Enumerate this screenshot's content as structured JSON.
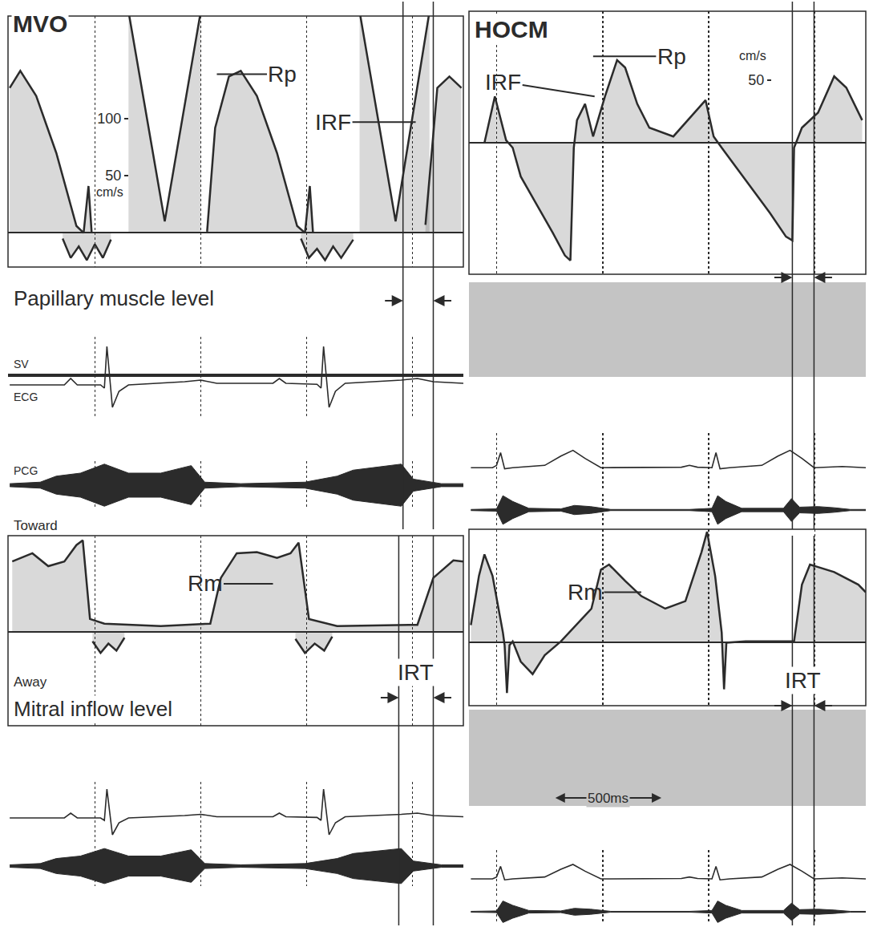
{
  "chart_data": [
    {
      "type": "line",
      "title": "MVO",
      "level": "Papillary muscle level",
      "color": "#2b2b2b",
      "grid": true,
      "tick_labels": "y",
      "xlim": [
        -410,
        1740
      ],
      "xticks": [
        0,
        500,
        1000,
        1500
      ],
      "doppler": {
        "ylim": [
          -30,
          190
        ],
        "yticks": [
          50,
          100
        ],
        "unit": "cm/s",
        "series": [
          {
            "x": [
              -402,
              -352,
              -277,
              -182,
              -87,
              -53,
              -30,
              -15
            ],
            "values": [
              127,
              142,
              120,
              70,
              6,
              0,
              41,
              0
            ]
          },
          {
            "x": [
              159,
              330,
              500
            ],
            "values": [
              194,
              10,
              194
            ]
          },
          {
            "x": [
              530,
              568,
              633,
              689,
              765,
              860,
              955,
              992,
              1015,
              1030
            ],
            "values": [
              1,
              92,
              137,
              142,
              120,
              70,
              6,
              0,
              41,
              0
            ]
          },
          {
            "x": [
              1250,
              1420,
              1580
            ],
            "values": [
              194,
              10,
              194
            ]
          },
          {
            "x": [
              1561,
              1617,
              1674,
              1731
            ],
            "values": [
              7,
              127,
              137,
              127
            ]
          },
          {
            "x": [
              -152,
              -114,
              -76,
              -38,
              0,
              38,
              76
            ],
            "values": [
              -5,
              -22,
              -12,
              -24,
              -10,
              -22,
              -6
            ]
          },
          {
            "x": [
              973,
              1011,
              1049,
              1087,
              1125,
              1163,
              1220
            ],
            "values": [
              -5,
              -22,
              -14,
              -24,
              -12,
              -22,
              -6
            ]
          }
        ]
      },
      "annotations": [
        {
          "text": "Rp",
          "x": 576,
          "y": 139
        },
        {
          "text": "IRF",
          "x": 1515,
          "y": 97
        }
      ],
      "interval": {
        "x": [
          1455,
          1598
        ]
      },
      "sv": {
        "label": "SV",
        "y": 0.3
      },
      "ecg": {
        "label": "ECG",
        "ylim": [
          -1,
          1.5
        ],
        "x": [
          -402,
          -144,
          -114,
          -83,
          27,
          45,
          57,
          83,
          114,
          159,
          424,
          500,
          576,
          841,
          871,
          902,
          1049,
          1068,
          1080,
          1106,
          1136,
          1182,
          1447,
          1523,
          1598,
          1740
        ],
        "values": [
          0,
          0,
          0.2,
          0,
          0,
          -0.1,
          1.2,
          -0.7,
          -0.2,
          0,
          0.1,
          0.15,
          0.05,
          0.05,
          0.2,
          0.05,
          0.02,
          -0.1,
          1.2,
          -0.7,
          -0.2,
          0.05,
          0.15,
          0.2,
          0.1,
          0.05
        ]
      },
      "pcg": {
        "label": "PCG",
        "ylim": [
          -16,
          16
        ],
        "x": [
          -402,
          -258,
          -182,
          -68,
          45,
          159,
          311,
          455,
          519,
          689,
          992,
          1144,
          1220,
          1333,
          1447,
          1504,
          1636,
          1740
        ],
        "upper": [
          1,
          2,
          6,
          8,
          14,
          8,
          8,
          13,
          2,
          1,
          2,
          6,
          10,
          12,
          14,
          4,
          1,
          1
        ],
        "lower": [
          -1,
          -2,
          -6,
          -8,
          -14,
          -8,
          -8,
          -13,
          -2,
          -1,
          -2,
          -6,
          -10,
          -12,
          -14,
          -4,
          -1,
          -1
        ]
      }
    },
    {
      "type": "line",
      "title": "HOCM",
      "color": "#2b2b2b",
      "grid": true,
      "tick_labels": "y",
      "xlim": [
        -130,
        1740
      ],
      "xticks": [
        0,
        500,
        1000,
        1500
      ],
      "doppler": {
        "ylim": [
          -105,
          105
        ],
        "yticks": [
          50
        ],
        "unit": "cm/s",
        "series": [
          {
            "x": [
              -57,
              -8,
              45,
              76,
              114,
              189,
              265,
              322,
              348,
              364,
              379,
              417,
              455,
              511,
              568,
              606,
              663,
              720,
              833,
              985,
              1023,
              1061,
              1174,
              1288,
              1364,
              1394,
              1402,
              1439,
              1515,
              1591,
              1648,
              1723
            ],
            "values": [
              0,
              37,
              2,
              -4,
              -27,
              -49,
              -72,
              -90,
              -94,
              -4,
              18,
              31,
              5,
              37,
              66,
              60,
              31,
              12,
              5,
              34,
              5,
              -4,
              -30,
              -56,
              -75,
              -78,
              -4,
              12,
              24,
              53,
              44,
              18
            ]
          }
        ]
      },
      "annotations": [
        {
          "text": "Rp",
          "x": 455,
          "y": 69
        },
        {
          "text": "IRF",
          "x": 462,
          "y": 37
        }
      ],
      "interval": {
        "x": [
          1394,
          1496
        ]
      },
      "ecg": {
        "ylim": [
          -1,
          1.5
        ],
        "x": [
          -121,
          -19,
          0,
          19,
          38,
          76,
          227,
          303,
          360,
          417,
          492,
          871,
          909,
          947,
          1015,
          1034,
          1053,
          1098,
          1250,
          1326,
          1383,
          1439,
          1496,
          1629,
          1740
        ],
        "values": [
          0,
          0,
          0.1,
          0.65,
          -0.05,
          0,
          0.1,
          0.5,
          0.75,
          0.4,
          0,
          0.02,
          0.1,
          0.02,
          0,
          0.65,
          -0.05,
          0,
          0.1,
          0.5,
          0.75,
          0.4,
          0,
          0.05,
          0
        ]
      },
      "pcg": {
        "ylim": [
          -28,
          28
        ],
        "x": [
          -121,
          0,
          30,
          76,
          152,
          303,
          367,
          443,
          538,
          909,
          1015,
          1042,
          1080,
          1155,
          1352,
          1390,
          1428,
          1515,
          1591,
          1667,
          1740
        ],
        "upper": [
          1,
          2,
          25,
          15,
          3,
          2,
          8,
          6,
          1,
          1,
          3,
          25,
          15,
          3,
          3,
          20,
          5,
          6,
          4,
          1,
          1
        ],
        "lower": [
          -1,
          -2,
          -25,
          -15,
          -3,
          -2,
          -8,
          -6,
          -1,
          -1,
          -3,
          -25,
          -15,
          -3,
          -3,
          -20,
          -5,
          -6,
          -4,
          -1,
          -1
        ]
      }
    },
    {
      "type": "line",
      "level": "Mitral inflow level",
      "color": "#2b2b2b",
      "grid": true,
      "tick_labels": false,
      "xlim": [
        -410,
        1740
      ],
      "xticks": [
        0,
        500,
        1000,
        1500
      ],
      "doppler": {
        "ylim": [
          -80,
          82
        ],
        "direction_labels": {
          "toward": "Toward",
          "away": "Away"
        },
        "series": [
          {
            "x": [
              -390,
              -295,
              -220,
              -144,
              -87,
              -57,
              -23,
              45,
              311,
              545,
              595,
              670,
              765,
              860,
              924,
              962,
              1011,
              1144,
              1523,
              1598,
              1693,
              1740
            ],
            "values": [
              60,
              67,
              56,
              60,
              74,
              78,
              11,
              7,
              5,
              7,
              46,
              67,
              68,
              63,
              67,
              76,
              11,
              5,
              6,
              46,
              61,
              60
            ]
          },
          {
            "x": [
              -11,
              27,
              64,
              102,
              140
            ],
            "values": [
              -8,
              -18,
              -10,
              -16,
              -5
            ]
          },
          {
            "x": [
              947,
              992,
              1038,
              1083,
              1121
            ],
            "values": [
              -6,
              -18,
              -10,
              -16,
              -4
            ]
          }
        ]
      },
      "annotations": [
        {
          "text": "Rm",
          "x": 841,
          "y": 41
        }
      ],
      "interval": {
        "label": "IRT",
        "x": [
          1435,
          1598
        ]
      },
      "ecg": {
        "ylim": [
          -1,
          1.5
        ],
        "x": [
          -402,
          -144,
          -114,
          -83,
          27,
          45,
          57,
          83,
          114,
          159,
          424,
          500,
          576,
          841,
          871,
          902,
          1049,
          1068,
          1080,
          1106,
          1136,
          1182,
          1447,
          1523,
          1598,
          1740
        ],
        "values": [
          0,
          0,
          0.2,
          0,
          0,
          -0.1,
          1.2,
          -0.7,
          -0.2,
          0,
          0.1,
          0.15,
          0.05,
          0.05,
          0.2,
          0.05,
          0.02,
          -0.1,
          1.2,
          -0.7,
          -0.2,
          0.05,
          0.15,
          0.2,
          0.1,
          0.05
        ]
      },
      "pcg": {
        "ylim": [
          -16,
          16
        ],
        "x": [
          -402,
          -258,
          -182,
          -68,
          45,
          159,
          311,
          455,
          519,
          689,
          992,
          1144,
          1220,
          1333,
          1447,
          1504,
          1636,
          1740
        ],
        "upper": [
          1,
          2,
          6,
          8,
          14,
          8,
          8,
          13,
          2,
          1,
          2,
          6,
          10,
          12,
          14,
          4,
          1,
          1
        ],
        "lower": [
          -1,
          -2,
          -6,
          -8,
          -14,
          -8,
          -8,
          -13,
          -2,
          -1,
          -2,
          -6,
          -10,
          -12,
          -14,
          -4,
          -1,
          -1
        ]
      }
    },
    {
      "type": "line",
      "color": "#2b2b2b",
      "grid": true,
      "tick_labels": false,
      "xlim": [
        -130,
        1740
      ],
      "xticks": [
        0,
        500,
        1000,
        1500
      ],
      "doppler": {
        "ylim": [
          -50,
          90
        ],
        "series": [
          {
            "x": [
              -121,
              -83,
              -57,
              -19,
              30,
              38,
              49,
              61,
              76,
              114,
              170,
              227,
              303,
              447,
              492,
              530,
              606,
              682,
              795,
              890,
              966,
              992,
              1030,
              1061,
              1072,
              1083,
              1174,
              1402,
              1439,
              1477,
              1591,
              1705,
              1740
            ],
            "values": [
              14,
              53,
              70,
              53,
              8,
              -2,
              -40,
              -2,
              1,
              -15,
              -25,
              -10,
              1,
              27,
              58,
              62,
              49,
              37,
              27,
              33,
              72,
              88,
              53,
              8,
              -37,
              0,
              1,
              1,
              46,
              62,
              56,
              46,
              40
            ]
          }
        ]
      },
      "annotations": [
        {
          "text": "Rm",
          "x": 682,
          "y": 40
        }
      ],
      "interval": {
        "label": "IRT",
        "x": [
          1394,
          1496
        ]
      },
      "scale_bar": {
        "label": "500ms",
        "x": [
          277,
          777
        ]
      },
      "ecg": {
        "ylim": [
          -1,
          1.5
        ],
        "x": [
          -121,
          -19,
          0,
          19,
          38,
          76,
          227,
          303,
          360,
          417,
          492,
          871,
          909,
          947,
          1015,
          1034,
          1053,
          1098,
          1250,
          1326,
          1383,
          1439,
          1496,
          1629,
          1740
        ],
        "values": [
          0,
          0,
          0.1,
          0.65,
          -0.05,
          0,
          0.1,
          0.5,
          0.75,
          0.4,
          0,
          0.02,
          0.1,
          0.02,
          0,
          0.65,
          -0.05,
          0,
          0.1,
          0.5,
          0.75,
          0.4,
          0,
          0.05,
          0
        ]
      },
      "pcg": {
        "ylim": [
          -28,
          28
        ],
        "x": [
          -121,
          0,
          30,
          76,
          152,
          303,
          367,
          443,
          538,
          909,
          1015,
          1042,
          1080,
          1155,
          1352,
          1390,
          1428,
          1515,
          1591,
          1667,
          1740
        ],
        "upper": [
          1,
          2,
          25,
          15,
          3,
          2,
          8,
          6,
          1,
          1,
          3,
          25,
          15,
          3,
          3,
          20,
          5,
          6,
          4,
          1,
          1
        ],
        "lower": [
          -1,
          -2,
          -25,
          -15,
          -3,
          -2,
          -8,
          -6,
          -1,
          -1,
          -3,
          -25,
          -15,
          -3,
          -3,
          -20,
          -5,
          -6,
          -4,
          -1,
          -1
        ]
      }
    }
  ]
}
